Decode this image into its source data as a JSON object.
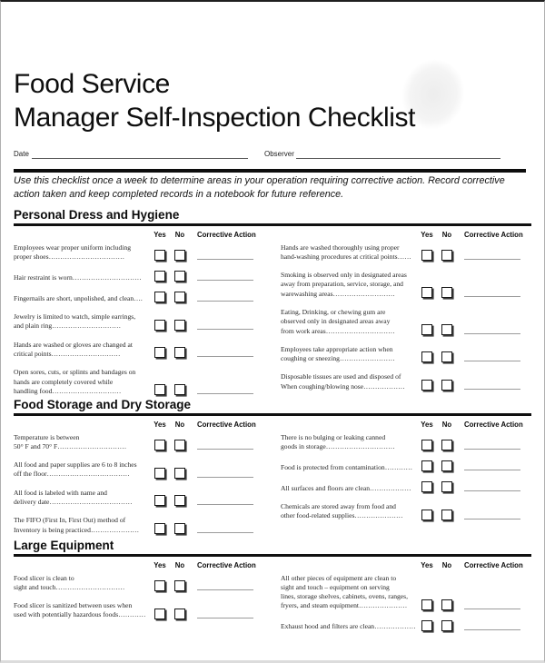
{
  "header": {
    "title_line1": "Food Service",
    "title_line2": "Manager Self-Inspection Checklist",
    "date_label": "Date",
    "observer_label": "Observer",
    "instructions": "Use this checklist once a week to determine areas in your operation requiring corrective action.  Record corrective action taken and keep completed records in a notebook for future reference."
  },
  "column_headers": {
    "yes": "Yes",
    "no": "No",
    "corrective_action": "Corrective Action"
  },
  "sections": [
    {
      "title": "Personal Dress and Hygiene",
      "left": [
        {
          "text": "Employees wear proper uniform including\nproper shoes……………………………"
        },
        {
          "text": "Hair restraint is worn…………………………"
        },
        {
          "text": "Fingernails are short, unpolished, and clean…."
        },
        {
          "text": "Jewelry is limited to watch, simple earrings,\nand plain ring…………………………"
        },
        {
          "text": "Hands are washed or gloves are changed at\ncritical points…………………………"
        },
        {
          "text": "Open sores, cuts, or splints and bandages on\nhands are completely covered while\nhandling food…………………………"
        }
      ],
      "right": [
        {
          "text": "Hands are washed thoroughly using proper\nhand-washing procedures at critical points……"
        },
        {
          "text": "Smoking is observed only in designated areas\naway from preparation, service, storage, and\nwarewashing areas………………………"
        },
        {
          "text": "Eating, Drinking, or chewing gum are\nobserved only in designated areas away\nfrom work areas…………………………"
        },
        {
          "text": "Employees take appropriate action when\ncoughing or sneezing……………………"
        },
        {
          "text": "Disposable tissues are used and disposed of\nWhen coughing/blowing nose………………"
        }
      ]
    },
    {
      "title": "Food Storage and Dry Storage",
      "left": [
        {
          "text": "Temperature is between\n50° F and 70° F…………………………"
        },
        {
          "text": "All food and paper supplies are 6 to 8 inches\noff the floor………………………………"
        },
        {
          "text": "All food is labeled with name and\ndelivery date………………………………"
        },
        {
          "text": "The FIFO (First In, First Out) method of\nInventory is being practiced…………………"
        }
      ],
      "right": [
        {
          "text": "There is no bulging or leaking canned\ngoods in storage…………………………"
        },
        {
          "text": "Food is protected from contamination…………"
        },
        {
          "text": "All surfaces and floors are clean………………"
        },
        {
          "text": "Chemicals are stored away from food and\nother food-related supplies…………………"
        }
      ]
    },
    {
      "title": "Large Equipment",
      "left": [
        {
          "text": "Food slicer is clean to\nsight and touch…………………………"
        },
        {
          "text": "Food slicer is sanitized between uses when\nused with potentially hazardous foods…………"
        }
      ],
      "right": [
        {
          "text": "All other pieces of equipment are clean to\nsight and touch – equipment on serving\nlines, storage shelves, cabinets, ovens, ranges,\nfryers, and steam equipment…………………"
        },
        {
          "text": "Exhaust hood and filters are clean………………"
        }
      ]
    }
  ]
}
